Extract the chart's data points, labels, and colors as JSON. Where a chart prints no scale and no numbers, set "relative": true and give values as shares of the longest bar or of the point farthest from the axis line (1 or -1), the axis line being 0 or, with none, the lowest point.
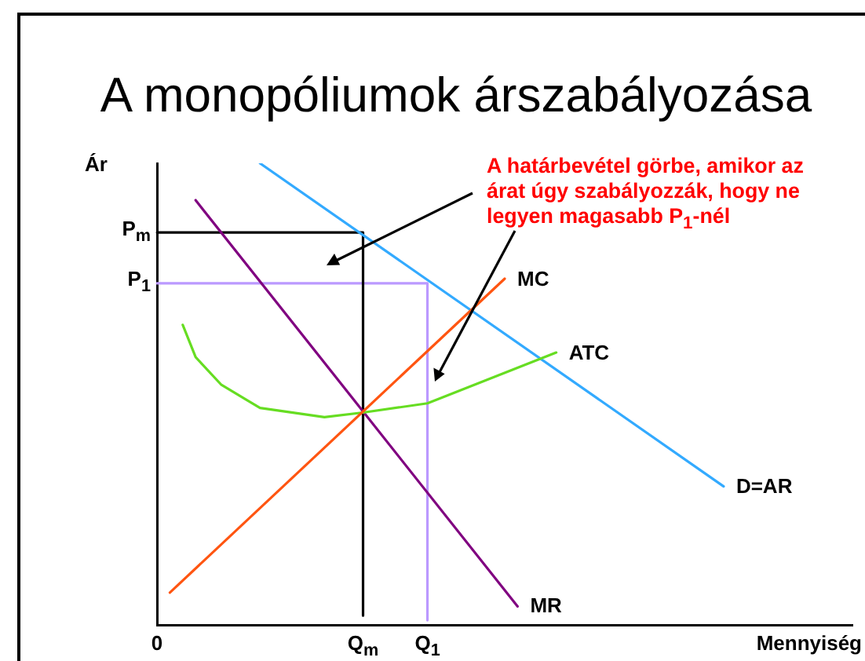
{
  "chart_data": {
    "type": "line",
    "title": "A monopóliumok árszabályozása",
    "xlabel": "Mennyiség",
    "ylabel": "Ár",
    "relative": true,
    "categories": [
      "0",
      null,
      null,
      null,
      null,
      null,
      null,
      null,
      null,
      null,
      null,
      null,
      null,
      null,
      null,
      null,
      "Q$_{m}$",
      null,
      null,
      null,
      null,
      "Q$_{1}$",
      null,
      null,
      null,
      null,
      null,
      null,
      null,
      null,
      null,
      null,
      null,
      null,
      null,
      null,
      null,
      null,
      null,
      null,
      null,
      null,
      null,
      null,
      null,
      null,
      null,
      null,
      null,
      null,
      null,
      null,
      null,
      null,
      null
    ],
    "series": [
      {
        "name": "MC",
        "color": "#ff5511",
        "values": [
          null,
          0.07,
          null,
          null,
          null,
          null,
          null,
          null,
          null,
          null,
          null,
          null,
          null,
          null,
          null,
          null,
          null,
          null,
          null,
          null,
          null,
          null,
          null,
          null,
          null,
          null,
          null,
          0.75,
          null,
          null,
          null,
          null,
          null,
          null,
          null,
          null,
          null,
          null,
          null,
          null,
          null,
          null,
          null,
          null,
          null,
          null,
          null,
          null,
          null,
          null,
          null,
          null,
          null,
          null,
          null
        ]
      },
      {
        "name": "ATC",
        "color": "#66dd22",
        "values": [
          null,
          null,
          0.65,
          0.58,
          null,
          0.52,
          null,
          null,
          0.47,
          null,
          null,
          null,
          null,
          0.45,
          null,
          null,
          0.46,
          null,
          null,
          null,
          null,
          0.48,
          null,
          null,
          null,
          null,
          null,
          null,
          null,
          null,
          null,
          0.59,
          null,
          null,
          null,
          null,
          null,
          null,
          null,
          null,
          null,
          null,
          null,
          null,
          null,
          null,
          null,
          null,
          null,
          null,
          null,
          null,
          null,
          null,
          null
        ]
      },
      {
        "name": "D=AR",
        "color": "#33aaff",
        "values": [
          null,
          null,
          null,
          null,
          null,
          null,
          null,
          null,
          1,
          null,
          null,
          null,
          null,
          null,
          null,
          null,
          null,
          null,
          null,
          null,
          null,
          null,
          null,
          null,
          null,
          null,
          null,
          null,
          null,
          null,
          null,
          null,
          null,
          null,
          null,
          null,
          null,
          null,
          null,
          null,
          null,
          null,
          null,
          null,
          0.3,
          null,
          null,
          null,
          null,
          null,
          null,
          null,
          null,
          null,
          null
        ]
      },
      {
        "name": "MR",
        "color": "#800080",
        "values": [
          null,
          null,
          null,
          0.92,
          null,
          null,
          null,
          null,
          null,
          null,
          null,
          null,
          null,
          null,
          null,
          null,
          null,
          null,
          null,
          null,
          null,
          null,
          null,
          null,
          null,
          null,
          null,
          null,
          0.04,
          null,
          null,
          null,
          null,
          null,
          null,
          null,
          null,
          null,
          null,
          null,
          null,
          null,
          null,
          null,
          null,
          null,
          null,
          null,
          null,
          null,
          null,
          null,
          null,
          null,
          null
        ]
      },
      {
        "name": "P$_{m}$",
        "color": "#000000",
        "x": [
          "0",
          "Q$_{m}$",
          "Q$_{m}$"
        ],
        "values": [
          0.85,
          0.85,
          0.02
        ]
      },
      {
        "name": "P$_{1}$",
        "color": "#bb99ff",
        "x": [
          "0",
          "Q$_{1}$",
          "Q$_{1}$"
        ],
        "values": [
          0.74,
          0.74,
          0.01
        ]
      }
    ],
    "annotations": [
      "A határbevétel görbe, amikor az árat úgy szabályozzák, hogy ne legyen magasabb P$_{1}$-nél"
    ]
  }
}
